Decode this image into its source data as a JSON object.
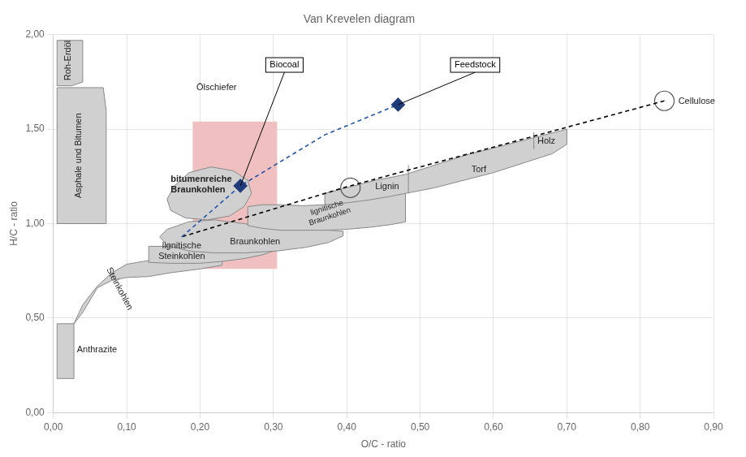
{
  "chart_data": {
    "type": "scatter",
    "title": "Van Krevelen diagram",
    "xlabel": "O/C - ratio",
    "ylabel": "H/C - ratio",
    "xlim": [
      0.0,
      0.9
    ],
    "ylim": [
      0.0,
      2.0
    ],
    "xticks": [
      {
        "value": 0.0,
        "label": "0,00"
      },
      {
        "value": 0.1,
        "label": "0,10"
      },
      {
        "value": 0.2,
        "label": "0,20"
      },
      {
        "value": 0.3,
        "label": "0,30"
      },
      {
        "value": 0.4,
        "label": "0,40"
      },
      {
        "value": 0.5,
        "label": "0,50"
      },
      {
        "value": 0.6,
        "label": "0,60"
      },
      {
        "value": 0.7,
        "label": "0,70"
      },
      {
        "value": 0.8,
        "label": "0,80"
      },
      {
        "value": 0.9,
        "label": "0,90"
      }
    ],
    "yticks": [
      {
        "value": 0.0,
        "label": "0,00"
      },
      {
        "value": 0.5,
        "label": "0,50"
      },
      {
        "value": 1.0,
        "label": "1,00"
      },
      {
        "value": 1.5,
        "label": "1,50"
      },
      {
        "value": 2.0,
        "label": "2,00"
      }
    ],
    "grid": true,
    "regions": [
      {
        "x": [
          0.19,
          0.305,
          0.305,
          0.19
        ],
        "y": [
          0.76,
          0.76,
          1.54,
          1.54
        ],
        "color": "#f0c0c0",
        "line_style": "none"
      },
      {
        "x": [
          0.005,
          0.04,
          0.04,
          0.025,
          0.005,
          0.005
        ],
        "y": [
          1.97,
          1.97,
          1.75,
          1.73,
          1.73,
          1.97
        ],
        "color": "#d0d0d0",
        "line_style": "solid"
      },
      {
        "x": [
          0.005,
          0.068,
          0.072,
          0.072,
          0.005,
          0.005
        ],
        "y": [
          1.72,
          1.72,
          1.6,
          1.0,
          1.0,
          1.72
        ],
        "color": "#d0d0d0",
        "line_style": "solid"
      },
      {
        "x": [
          0.005,
          0.028,
          0.028,
          0.005,
          0.005
        ],
        "y": [
          0.47,
          0.47,
          0.18,
          0.18,
          0.47
        ],
        "color": "#d0d0d0",
        "line_style": "solid"
      },
      {
        "x": [
          0.028,
          0.04,
          0.06,
          0.08,
          0.1,
          0.13,
          0.16,
          0.2,
          0.23,
          0.23,
          0.2,
          0.16,
          0.13,
          0.1,
          0.08,
          0.06,
          0.04,
          0.028
        ],
        "y": [
          0.47,
          0.57,
          0.67,
          0.74,
          0.785,
          0.805,
          0.82,
          0.84,
          0.86,
          0.78,
          0.76,
          0.74,
          0.72,
          0.715,
          0.7,
          0.66,
          0.53,
          0.47
        ],
        "color": "#d0d0d0",
        "line_style": "solid"
      },
      {
        "x": [
          0.13,
          0.16,
          0.2,
          0.23,
          0.26,
          0.285,
          0.3,
          0.3,
          0.285,
          0.26,
          0.23,
          0.2,
          0.16,
          0.13
        ],
        "y": [
          0.88,
          0.88,
          0.89,
          0.9,
          0.915,
          0.935,
          0.95,
          0.855,
          0.835,
          0.815,
          0.8,
          0.79,
          0.79,
          0.795
        ],
        "color": "#d0d0d0",
        "line_style": "solid"
      },
      {
        "x": [
          0.155,
          0.185,
          0.22,
          0.26,
          0.305,
          0.345,
          0.375,
          0.395,
          0.395,
          0.375,
          0.345,
          0.305,
          0.26,
          0.22,
          0.185,
          0.155,
          0.145,
          0.155
        ],
        "y": [
          0.97,
          1.01,
          1.02,
          1.0,
          0.975,
          0.97,
          0.965,
          0.96,
          0.935,
          0.9,
          0.875,
          0.855,
          0.845,
          0.845,
          0.855,
          0.885,
          0.93,
          0.97
        ],
        "color": "#d0d0d0",
        "line_style": "solid"
      },
      {
        "x": [
          0.37,
          0.4,
          0.44,
          0.48,
          0.52,
          0.56,
          0.6,
          0.64,
          0.68,
          0.7,
          0.7,
          0.68,
          0.64,
          0.6,
          0.56,
          0.52,
          0.48,
          0.44,
          0.4,
          0.37
        ],
        "y": [
          1.16,
          1.19,
          1.23,
          1.26,
          1.31,
          1.36,
          1.4,
          1.44,
          1.48,
          1.5,
          1.42,
          1.37,
          1.32,
          1.27,
          1.23,
          1.19,
          1.16,
          1.12,
          1.09,
          1.07
        ],
        "color": "#d0d0d0",
        "line_style": "solid"
      },
      {
        "x": [
          0.155,
          0.165,
          0.185,
          0.215,
          0.245,
          0.265,
          0.27,
          0.26,
          0.24,
          0.21,
          0.18,
          0.16,
          0.155
        ],
        "y": [
          1.13,
          1.2,
          1.27,
          1.3,
          1.28,
          1.23,
          1.16,
          1.09,
          1.04,
          1.02,
          1.03,
          1.07,
          1.13
        ],
        "color": "#d0d0d0",
        "line_style": "solid"
      },
      {
        "x": [
          0.265,
          0.285,
          0.31,
          0.34,
          0.37,
          0.4,
          0.43,
          0.46,
          0.48,
          0.48,
          0.46,
          0.43,
          0.4,
          0.37,
          0.34,
          0.31,
          0.285,
          0.265
        ],
        "y": [
          1.09,
          1.1,
          1.1,
          1.095,
          1.1,
          1.11,
          1.125,
          1.145,
          1.16,
          1.01,
          0.995,
          0.98,
          0.97,
          0.965,
          0.965,
          0.965,
          0.975,
          0.99
        ],
        "color": "#d0d0d0",
        "line_style": "solid"
      }
    ],
    "series": [
      {
        "type": "line",
        "x": [
          0.484,
          0.484
        ],
        "values": [
          1.16,
          1.31
        ],
        "color": "#888888",
        "line_style": "solid"
      },
      {
        "type": "line",
        "x": [
          0.655,
          0.655
        ],
        "values": [
          1.395,
          1.485
        ],
        "color": "#888888",
        "line_style": "solid"
      },
      {
        "type": "scatter",
        "x": [
          0.833
        ],
        "values": [
          1.65
        ],
        "color": "#555555",
        "marker": "circle"
      },
      {
        "type": "scatter",
        "x": [
          0.405
        ],
        "values": [
          1.19
        ],
        "color": "#555555",
        "marker": "circle"
      },
      {
        "type": "line",
        "x": [
          0.833,
          0.4,
          0.175
        ],
        "values": [
          1.65,
          1.195,
          0.93
        ],
        "color": "#000000",
        "line_style": "dashed"
      },
      {
        "type": "line",
        "x": [
          0.175,
          0.255,
          0.37,
          0.47
        ],
        "values": [
          0.93,
          1.2,
          1.47,
          1.63
        ],
        "color": "#2255aa",
        "line_style": "dashed"
      },
      {
        "type": "scatter",
        "x": [
          0.255
        ],
        "values": [
          1.2
        ],
        "color": "#1f3d7a",
        "marker": "diamond",
        "annotation": {
          "text": "Biocoal",
          "x": 0.315,
          "y": 1.84
        }
      },
      {
        "type": "scatter",
        "x": [
          0.47
        ],
        "values": [
          1.63
        ],
        "color": "#1f3d7a",
        "marker": "diamond",
        "annotation": {
          "text": "Feedstock",
          "x": 0.575,
          "y": 1.84
        }
      }
    ],
    "annotations": [
      {
        "text": "Roh-Erdöl",
        "x": 0.02,
        "y": 1.97
      },
      {
        "text": "Asphale und Bitumen",
        "x": 0.035,
        "y": 1.36
      },
      {
        "text": "Ölschiefer",
        "x": 0.195,
        "y": 1.72
      },
      {
        "text": "bitumenreiche\nBraunkohlen",
        "x": 0.16,
        "y": 1.205
      },
      {
        "text": "lignitische\nSteinkohlen",
        "x": 0.175,
        "y": 0.855
      },
      {
        "text": "Steinkohlen",
        "x": 0.09,
        "y": 0.655
      },
      {
        "text": "Anthrazite",
        "x": 0.032,
        "y": 0.33
      },
      {
        "text": "Braunkohlen",
        "x": 0.275,
        "y": 0.905
      },
      {
        "text": "lignitische\nBraunkohlen",
        "x": 0.375,
        "y": 1.06
      },
      {
        "text": "Lignin",
        "x": 0.455,
        "y": 1.195
      },
      {
        "text": "Torf",
        "x": 0.58,
        "y": 1.285
      },
      {
        "text": "Holz",
        "x": 0.672,
        "y": 1.435
      },
      {
        "text": "Cellulose",
        "x": 0.852,
        "y": 1.645
      }
    ]
  }
}
